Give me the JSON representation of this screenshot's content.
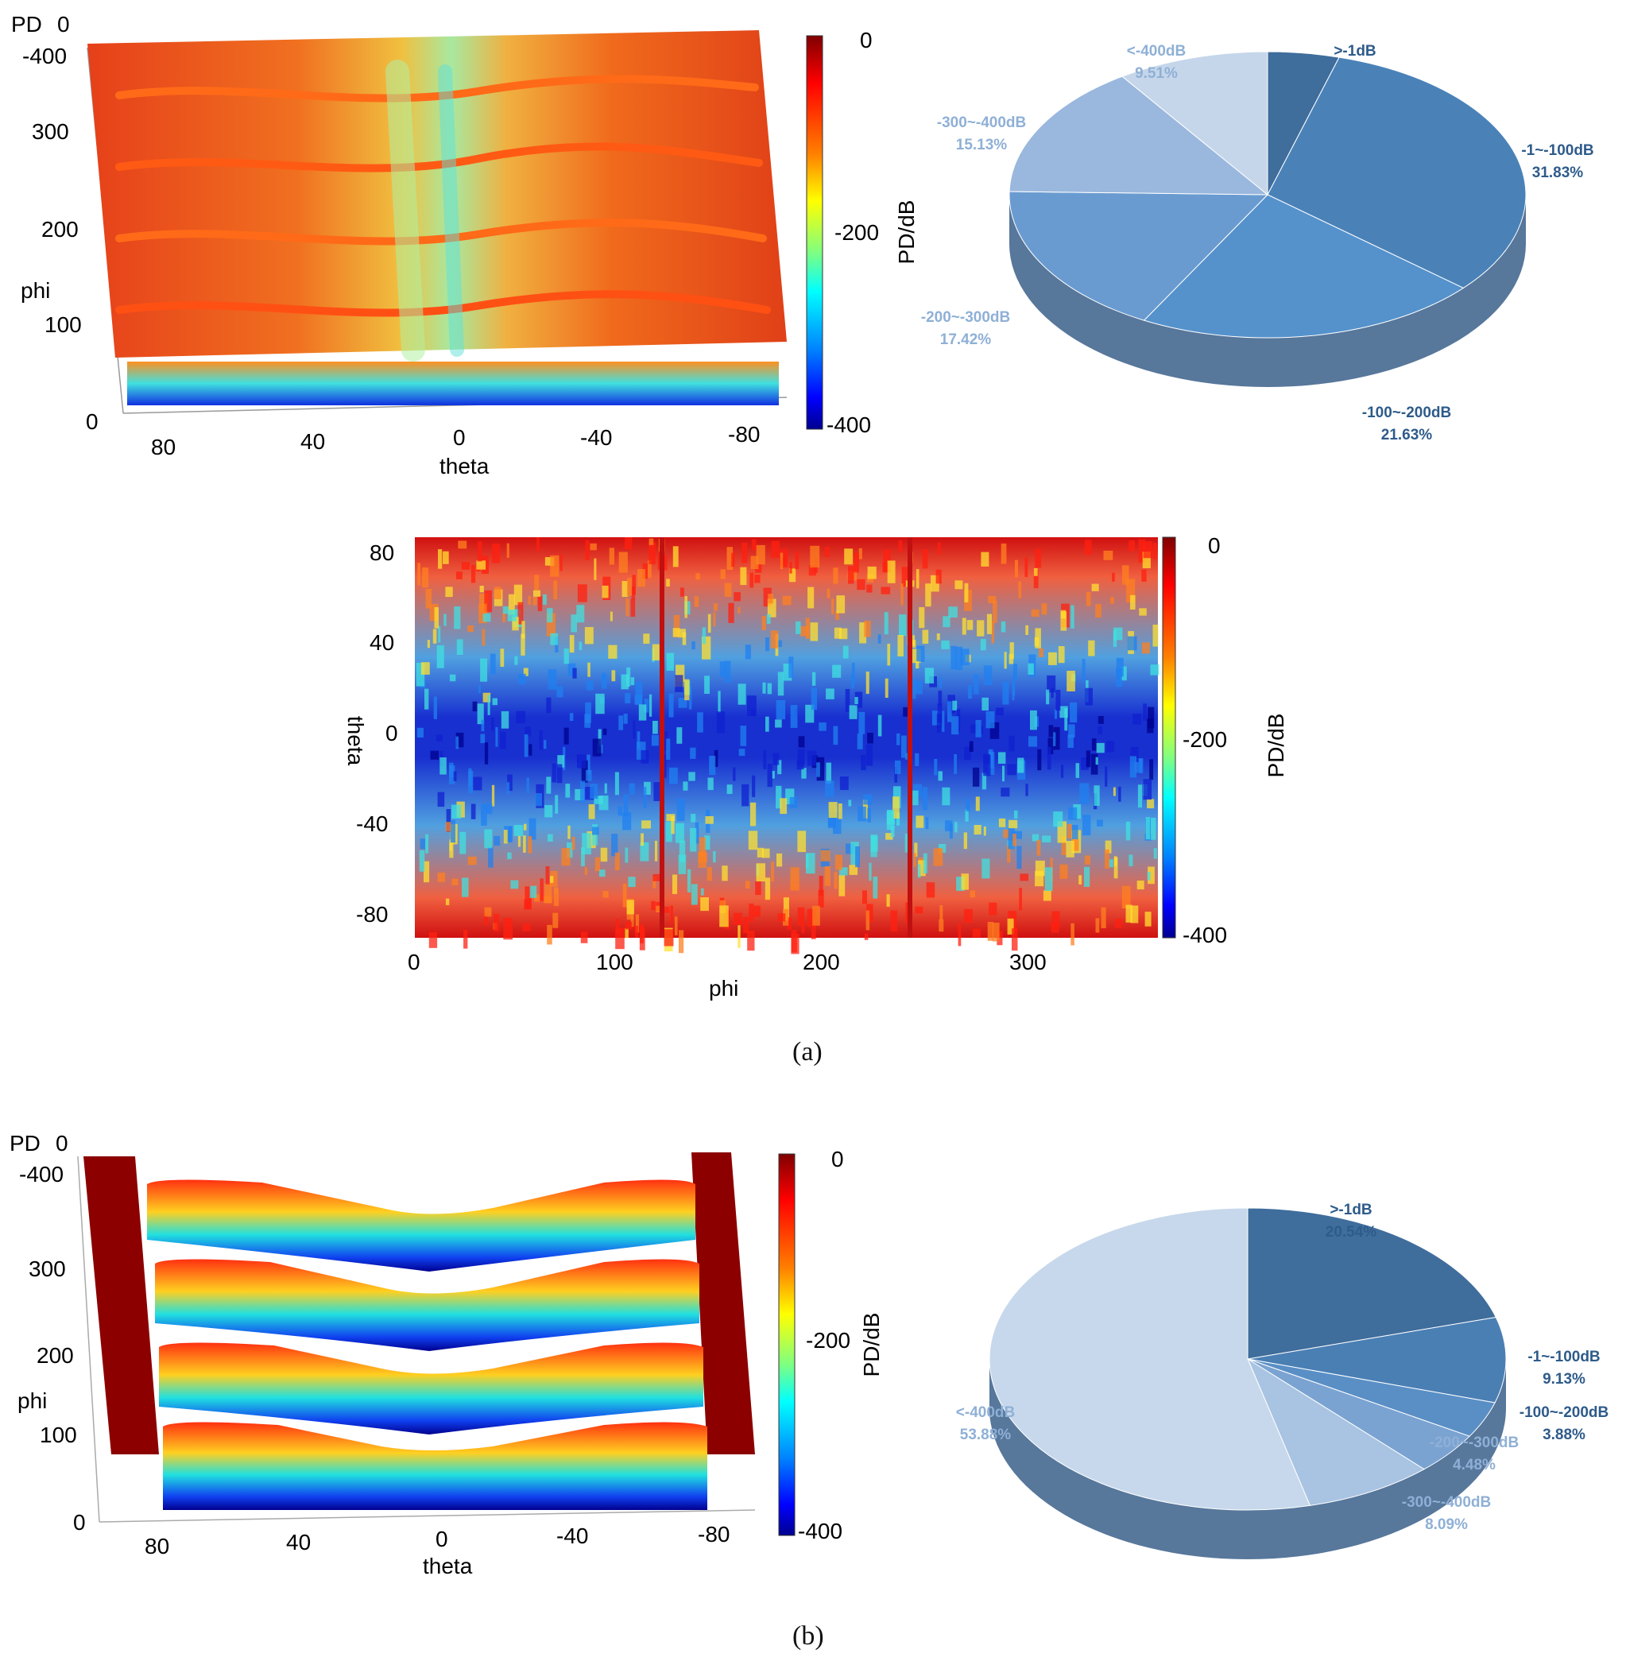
{
  "colors": {
    "jet": [
      "#00008f",
      "#0000ff",
      "#0080ff",
      "#00ffff",
      "#80ff80",
      "#ffff00",
      "#ff8000",
      "#ff0000",
      "#800000"
    ],
    "pie_a": [
      "#3f6d9c",
      "#4a82b8",
      "#5592cc",
      "#6a9bd0",
      "#9ab8de",
      "#c5d6ea"
    ],
    "pie_b": [
      "#3f6d9c",
      "#4a7fb4",
      "#5a8fc6",
      "#7aa3d2",
      "#a9c3e2",
      "#c7d8ec"
    ],
    "pie_label_dark": "#2e5b8a",
    "pie_label_light": "#8fb0d6"
  },
  "labels": {
    "panel_a": "(a)",
    "panel_b": "(b)"
  },
  "chart_data": [
    {
      "type": "surface3d",
      "panel": "a",
      "z_label": "PD",
      "x_label": "theta",
      "y_label": "phi",
      "z_ticks": [
        "0",
        "-400"
      ],
      "x_ticks": [
        "80",
        "40",
        "0",
        "-40",
        "-80"
      ],
      "y_ticks": [
        "0",
        "100",
        "200",
        "300"
      ],
      "colorbar_label": "PD/dB",
      "colorbar_ticks": [
        "0",
        "-200",
        "-400"
      ],
      "clim": [
        -400,
        0
      ]
    },
    {
      "type": "pie",
      "panel": "a",
      "categories": [
        ">-1dB",
        "-1~-100dB",
        "-100~-200dB",
        "-200~-300dB",
        "-300~-400dB",
        "<-400dB"
      ],
      "values": [
        4.47,
        31.83,
        21.63,
        17.42,
        15.13,
        9.51
      ],
      "value_labels": [
        "4.47%",
        "31.83%",
        "21.63%",
        "17.42%",
        "15.13%",
        "9.51%"
      ]
    },
    {
      "type": "heatmap",
      "panel": "a",
      "x_label": "phi",
      "y_label": "theta",
      "x_ticks": [
        "0",
        "100",
        "200",
        "300"
      ],
      "y_ticks": [
        "80",
        "40",
        "0",
        "-40",
        "-80"
      ],
      "xlim": [
        0,
        360
      ],
      "ylim": [
        -90,
        90
      ],
      "colorbar_label": "PD/dB",
      "colorbar_ticks": [
        "0",
        "-200",
        "-400"
      ],
      "clim": [
        -400,
        0
      ]
    },
    {
      "type": "surface3d",
      "panel": "b",
      "z_label": "PD",
      "x_label": "theta",
      "y_label": "phi",
      "z_ticks": [
        "0",
        "-400"
      ],
      "x_ticks": [
        "80",
        "40",
        "0",
        "-40",
        "-80"
      ],
      "y_ticks": [
        "0",
        "100",
        "200",
        "300"
      ],
      "colorbar_label": "PD/dB",
      "colorbar_ticks": [
        "0",
        "-200",
        "-400"
      ],
      "clim": [
        -400,
        0
      ]
    },
    {
      "type": "pie",
      "panel": "b",
      "categories": [
        ">-1dB",
        "-1~-100dB",
        "-100~-200dB",
        "-200~-300dB",
        "-300~-400dB",
        "<-400dB"
      ],
      "values": [
        20.54,
        9.13,
        3.88,
        4.48,
        8.09,
        53.88
      ],
      "value_labels": [
        "20.54%",
        "9.13%",
        "3.88%",
        "4.48%",
        "8.09%",
        "53.88%"
      ]
    }
  ]
}
